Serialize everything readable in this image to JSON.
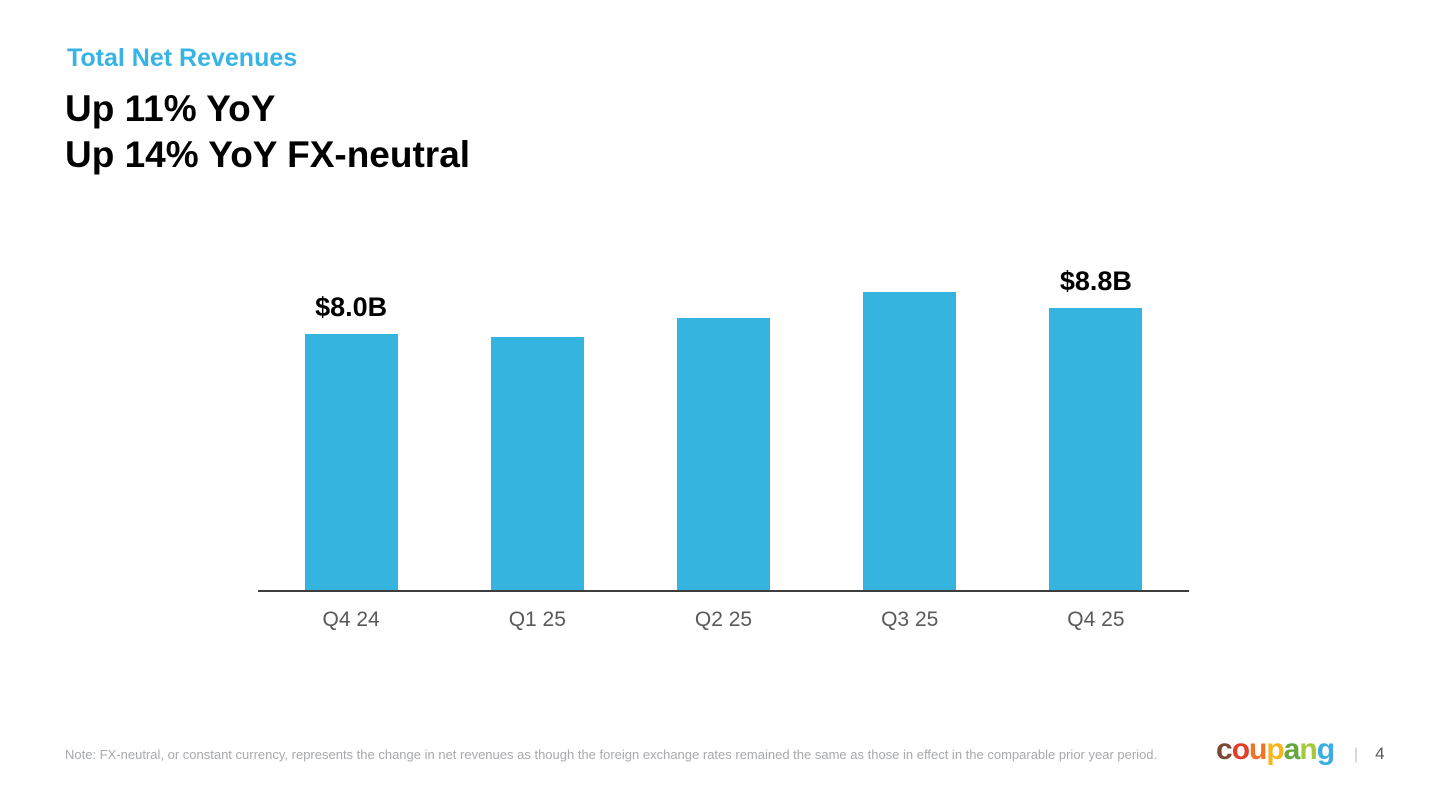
{
  "slide": {
    "eyebrow": "Total Net Revenues",
    "headline_line1": "Up 11% YoY",
    "headline_line2": "Up 14% YoY FX-neutral",
    "note": "Note: FX-neutral, or constant currency, represents the change in net revenues as though the foreign exchange rates remained the same as those in effect in the comparable prior year period.",
    "divider": "|",
    "page_number": "4",
    "logo_letters": [
      {
        "char": "c",
        "color": "#7A4935"
      },
      {
        "char": "o",
        "color": "#E23E2B"
      },
      {
        "char": "u",
        "color": "#F27123"
      },
      {
        "char": "p",
        "color": "#F8B61C"
      },
      {
        "char": "a",
        "color": "#64A83D"
      },
      {
        "char": "n",
        "color": "#A5C93D"
      },
      {
        "char": "g",
        "color": "#3AAEE0"
      }
    ]
  },
  "colors": {
    "accent_blue": "#35B4E5",
    "bar_fill": "#35B4E0",
    "axis_line": "#3d3d3d",
    "axis_label_gray": "#595959",
    "note_gray": "#A7A9AC"
  },
  "chart_data": {
    "type": "bar",
    "title": "Total Net Revenues",
    "categories": [
      "Q4 24",
      "Q1 25",
      "Q2 25",
      "Q3 25",
      "Q4 25"
    ],
    "values": [
      8.0,
      7.9,
      8.5,
      9.3,
      8.8
    ],
    "data_labels": [
      "$8.0B",
      null,
      null,
      null,
      "$8.8B"
    ],
    "bar_color": "#35B4E0",
    "xlabel": "",
    "ylabel": "",
    "ylim": [
      0,
      10
    ],
    "grid": false,
    "legend": false
  }
}
